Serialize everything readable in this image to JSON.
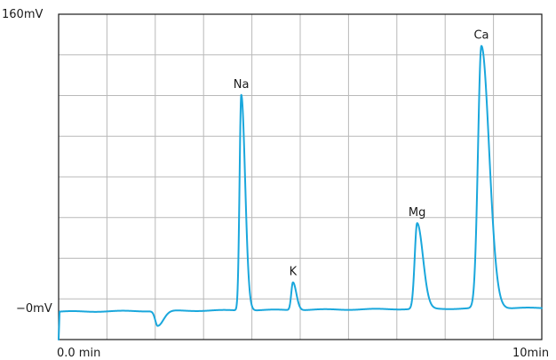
{
  "chart_data": {
    "type": "line",
    "title": "",
    "xlabel": "",
    "ylabel": "",
    "xlim": [
      0,
      10
    ],
    "ylim": [
      -15,
      160
    ],
    "y_baseline_value": 0,
    "x_start_label": "0.0 min",
    "x_end_label": "10min",
    "y_top_label": "160mV",
    "y_baseline_label": "−0mV",
    "grid": true,
    "grid_columns": 10,
    "grid_rows": 8,
    "series": [
      {
        "color": "#1aa7dc",
        "baseline_drift": 2,
        "peaks": [
          {
            "label": "",
            "time": 2.05,
            "height": -8,
            "width_left": 0.05,
            "width_right": 0.12
          },
          {
            "label": "Na",
            "time": 3.78,
            "height": 116,
            "width_left": 0.035,
            "width_right": 0.08
          },
          {
            "label": "K",
            "time": 4.85,
            "height": 15,
            "width_left": 0.035,
            "width_right": 0.07
          },
          {
            "label": "Mg",
            "time": 7.42,
            "height": 46,
            "width_left": 0.05,
            "width_right": 0.12
          },
          {
            "label": "Ca",
            "time": 8.75,
            "height": 141,
            "width_left": 0.07,
            "width_right": 0.16
          }
        ]
      }
    ]
  }
}
